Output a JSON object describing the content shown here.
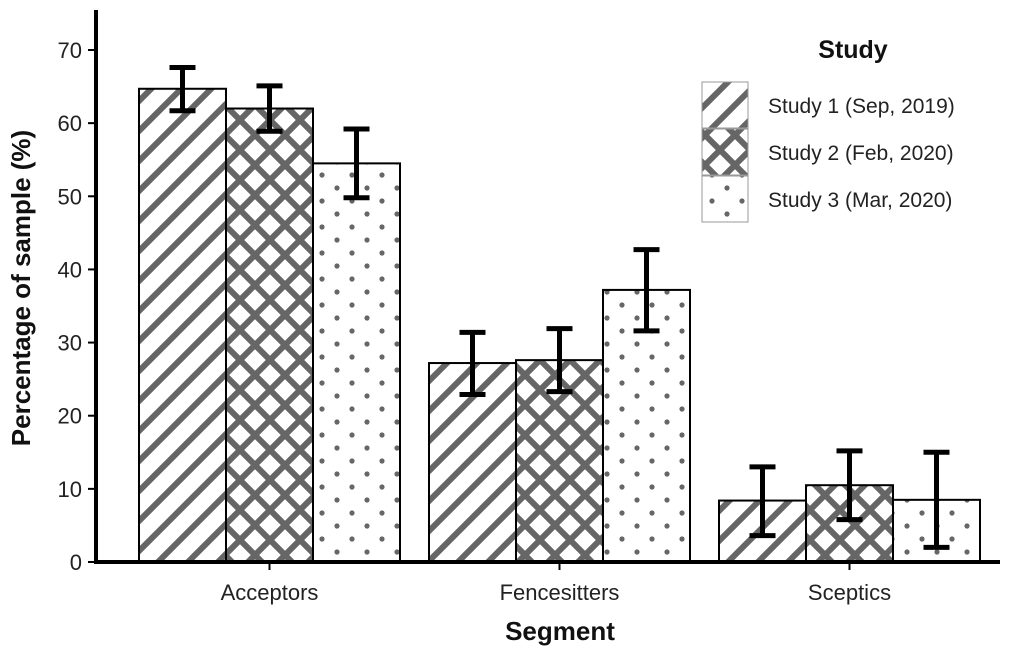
{
  "chart_data": {
    "type": "bar",
    "xlabel": "Segment",
    "ylabel": "Percentage of sample (%)",
    "ylim": [
      0,
      72
    ],
    "yticks": [
      0,
      10,
      20,
      30,
      40,
      50,
      60,
      70
    ],
    "categories": [
      "Acceptors",
      "Fencesitters",
      "Sceptics"
    ],
    "legend": {
      "title": "Study",
      "position": "top-right"
    },
    "grid": false,
    "series": [
      {
        "name": "Study 1 (Sep, 2019)",
        "pattern": "diagonal-stripes",
        "values": [
          64.7,
          27.2,
          8.4
        ],
        "error_low": [
          61.7,
          22.9,
          3.6
        ],
        "error_high": [
          67.6,
          31.4,
          13.0
        ]
      },
      {
        "name": "Study 2 (Feb, 2020)",
        "pattern": "crosshatch",
        "values": [
          62.0,
          27.6,
          10.5
        ],
        "error_low": [
          58.9,
          23.3,
          5.8
        ],
        "error_high": [
          65.1,
          31.9,
          15.2
        ]
      },
      {
        "name": "Study 3 (Mar, 2020)",
        "pattern": "dots",
        "values": [
          54.5,
          37.2,
          8.5
        ],
        "error_low": [
          49.8,
          31.6,
          2.0
        ],
        "error_high": [
          59.2,
          42.7,
          15.0
        ]
      }
    ],
    "colors": {
      "pattern": "#666666",
      "outline": "#000000",
      "bar_fill": "#ffffff"
    }
  }
}
